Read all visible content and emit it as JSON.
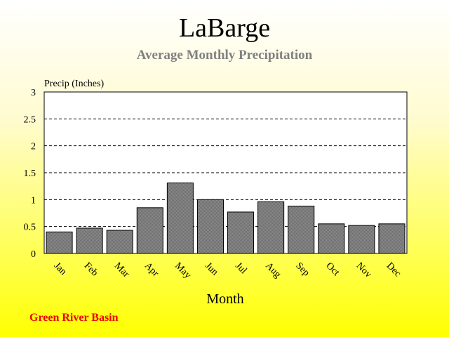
{
  "chart_data": {
    "type": "bar",
    "title": "LaBarge",
    "subtitle": "Average Monthly Precipitation",
    "xlabel": "Month",
    "ylabel": "Precip (Inches)",
    "categories": [
      "Jan",
      "Feb",
      "Mar",
      "Apr",
      "May",
      "Jun",
      "Jul",
      "Aug",
      "Sep",
      "Oct",
      "Nov",
      "Dec"
    ],
    "values": [
      0.4,
      0.47,
      0.43,
      0.85,
      1.31,
      1.0,
      0.77,
      0.96,
      0.88,
      0.55,
      0.52,
      0.55
    ],
    "ylim": [
      0,
      3
    ],
    "yticks": [
      0,
      0.5,
      1,
      1.5,
      2,
      2.5,
      3
    ],
    "ytick_labels": [
      "0",
      "0.5",
      "1",
      "1.5",
      "2",
      "2.5",
      "3"
    ],
    "grid": "horizontal dashed",
    "bar_color": "#808080",
    "plot_background": "#ffffff"
  },
  "footer": "Green River Basin"
}
